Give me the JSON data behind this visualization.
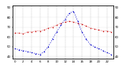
{
  "hours": [
    0,
    1,
    2,
    3,
    4,
    5,
    6,
    7,
    8,
    9,
    10,
    11,
    12,
    13,
    14,
    15,
    16,
    17,
    18,
    19,
    20,
    21,
    22,
    23
  ],
  "temp_red": [
    64,
    64,
    63,
    65,
    65,
    66,
    66,
    67,
    69,
    70,
    72,
    74,
    75,
    76,
    75,
    74,
    73,
    71,
    69,
    68,
    67,
    66,
    66,
    65
  ],
  "thsw_blue": [
    48,
    47,
    46,
    45,
    44,
    43,
    42,
    45,
    50,
    58,
    65,
    72,
    78,
    84,
    86,
    76,
    65,
    58,
    52,
    50,
    48,
    46,
    44,
    42
  ],
  "red_color": "#cc0000",
  "blue_color": "#0000cc",
  "background": "#ffffff",
  "ylim_min": 38,
  "ylim_max": 92,
  "grid_color": "#888888",
  "tick_fontsize": 2.8,
  "yticks": [
    40,
    50,
    60,
    70,
    80,
    90
  ],
  "xtick_step": 2
}
